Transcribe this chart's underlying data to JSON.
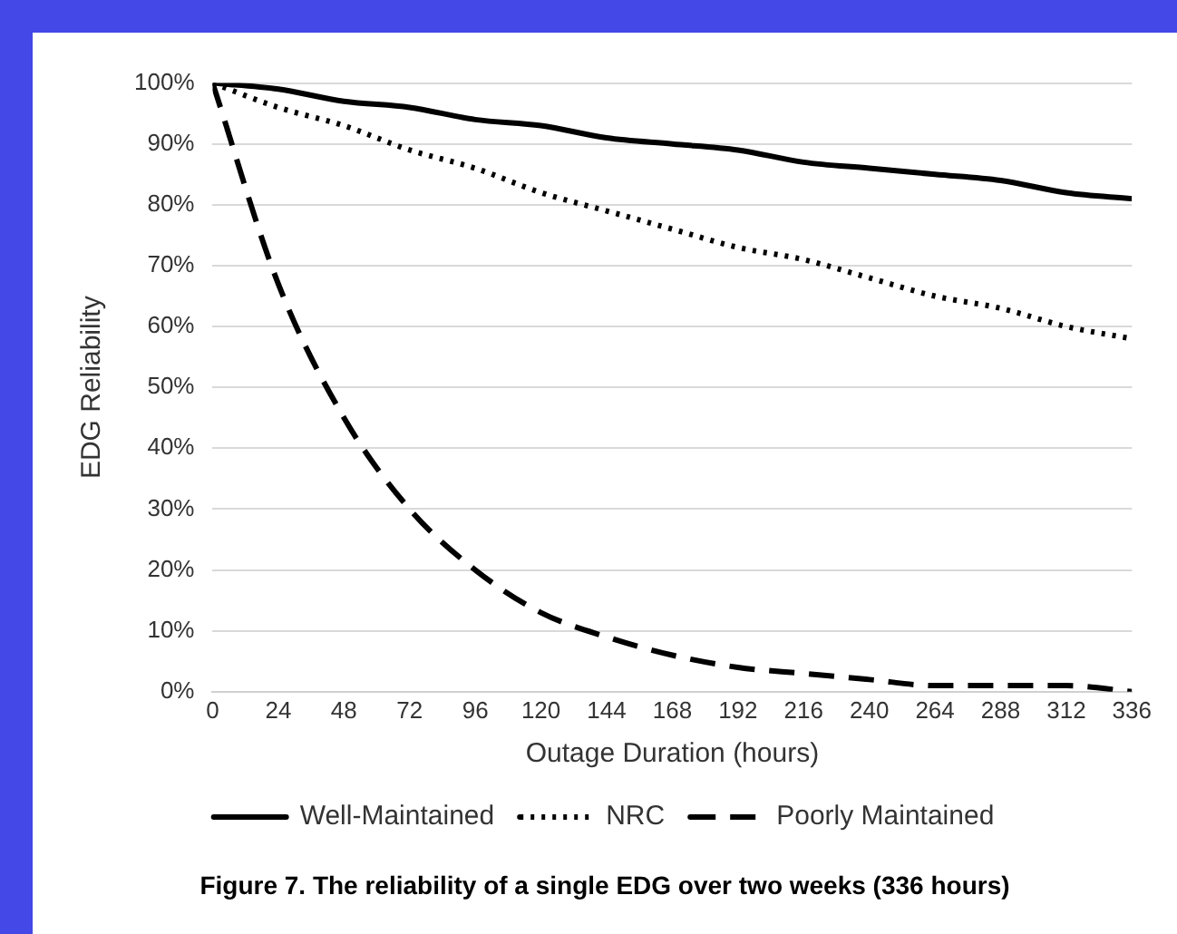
{
  "chart_data": {
    "type": "line",
    "xlabel": "Outage Duration (hours)",
    "ylabel": "EDG Reliability",
    "x": [
      0,
      24,
      48,
      72,
      96,
      120,
      144,
      168,
      192,
      216,
      240,
      264,
      288,
      312,
      336
    ],
    "xlim": [
      0,
      336
    ],
    "xticks": [
      0,
      24,
      48,
      72,
      96,
      120,
      144,
      168,
      192,
      216,
      240,
      264,
      288,
      312,
      336
    ],
    "ylim": [
      0,
      100
    ],
    "yticks": [
      {
        "value": 0,
        "label": "0%"
      },
      {
        "value": 10,
        "label": "10%"
      },
      {
        "value": 20,
        "label": "20%"
      },
      {
        "value": 30,
        "label": "30%"
      },
      {
        "value": 40,
        "label": "40%"
      },
      {
        "value": 50,
        "label": "50%"
      },
      {
        "value": 60,
        "label": "60%"
      },
      {
        "value": 70,
        "label": "70%"
      },
      {
        "value": 80,
        "label": "80%"
      },
      {
        "value": 90,
        "label": "90%"
      },
      {
        "value": 100,
        "label": "100%"
      }
    ],
    "grid": "y",
    "legend": "bottom",
    "marker": "none",
    "series": [
      {
        "name": "Well-Maintained",
        "color": "#000000",
        "line_style": "solid",
        "values": [
          100,
          99,
          97,
          96,
          94,
          93,
          91,
          90,
          89,
          87,
          86,
          85,
          84,
          82,
          81
        ]
      },
      {
        "name": "NRC",
        "color": "#000000",
        "line_style": "dotted",
        "values": [
          100,
          96,
          93,
          89,
          86,
          82,
          79,
          76,
          73,
          71,
          68,
          65,
          63,
          60,
          58
        ]
      },
      {
        "name": "Poorly Maintained",
        "color": "#000000",
        "line_style": "dashed",
        "values": [
          100,
          67,
          45,
          30,
          20,
          13,
          9,
          6,
          4,
          3,
          2,
          1,
          1,
          1,
          0
        ]
      }
    ],
    "annotations": [
      "Figure 7. The reliability of a single EDG over two weeks (336 hours)"
    ]
  }
}
